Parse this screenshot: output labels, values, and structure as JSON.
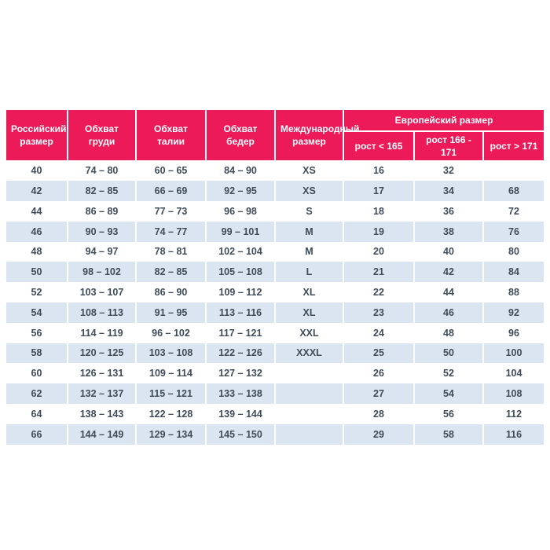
{
  "chart_data": {
    "type": "table",
    "columns": [
      "Российский размер",
      "Обхват груди",
      "Обхват талии",
      "Обхват бедер",
      "Международный размер"
    ],
    "group_header": "Европейский размер",
    "subcolumns": [
      "рост < 165",
      "рост 166 - 171",
      "рост > 171"
    ],
    "rows": [
      [
        "40",
        "74 – 80",
        "60 – 65",
        "84 – 90",
        "XS",
        "16",
        "32",
        ""
      ],
      [
        "42",
        "82 – 85",
        "66 – 69",
        "92 – 95",
        "XS",
        "17",
        "34",
        "68"
      ],
      [
        "44",
        "86 – 89",
        "77 – 73",
        "96 – 98",
        "S",
        "18",
        "36",
        "72"
      ],
      [
        "46",
        "90 – 93",
        "74 – 77",
        "99 – 101",
        "M",
        "19",
        "38",
        "76"
      ],
      [
        "48",
        "94 – 97",
        "78 – 81",
        "102 – 104",
        "M",
        "20",
        "40",
        "80"
      ],
      [
        "50",
        "98 – 102",
        "82 – 85",
        "105 – 108",
        "L",
        "21",
        "42",
        "84"
      ],
      [
        "52",
        "103 – 107",
        "86 – 90",
        "109 – 112",
        "XL",
        "22",
        "44",
        "88"
      ],
      [
        "54",
        "108 – 113",
        "91 – 95",
        "113 – 116",
        "XL",
        "23",
        "46",
        "92"
      ],
      [
        "56",
        "114 – 119",
        "96 – 102",
        "117 – 121",
        "XXL",
        "24",
        "48",
        "96"
      ],
      [
        "58",
        "120 – 125",
        "103 – 108",
        "122 – 126",
        "XXXL",
        "25",
        "50",
        "100"
      ],
      [
        "60",
        "126 – 131",
        "109 – 114",
        "127 – 132",
        "",
        "26",
        "52",
        "104"
      ],
      [
        "62",
        "132 – 137",
        "115 – 121",
        "133 – 138",
        "",
        "27",
        "54",
        "108"
      ],
      [
        "64",
        "138 – 143",
        "122 – 128",
        "139 – 144",
        "",
        "28",
        "56",
        "112"
      ],
      [
        "66",
        "144 – 149",
        "129 – 134",
        "145 – 150",
        "",
        "29",
        "58",
        "116"
      ]
    ]
  },
  "colors": {
    "header_bg": "#EC1A59",
    "header_text": "#FFFFFF",
    "row_alt_bg": "#DBE5F1",
    "cell_text": "#3F4B58",
    "divider": "#FFFFFF"
  }
}
